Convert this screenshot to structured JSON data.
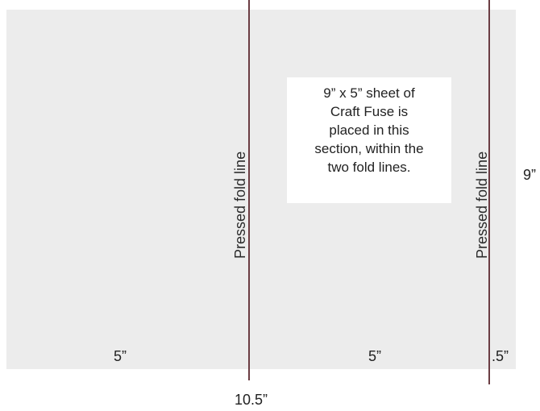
{
  "diagram": {
    "fold_lines": [
      {
        "label": "Pressed fold line"
      },
      {
        "label": "Pressed fold line"
      }
    ],
    "note_lines": [
      "9” x 5” sheet of",
      "Craft Fuse is",
      "placed in this",
      "section, within the",
      "two fold lines."
    ],
    "dimensions": {
      "left_width": "5”",
      "middle_width": "5”",
      "right_flap": ".5”",
      "height": "9”",
      "total_width": "10.5”"
    }
  }
}
